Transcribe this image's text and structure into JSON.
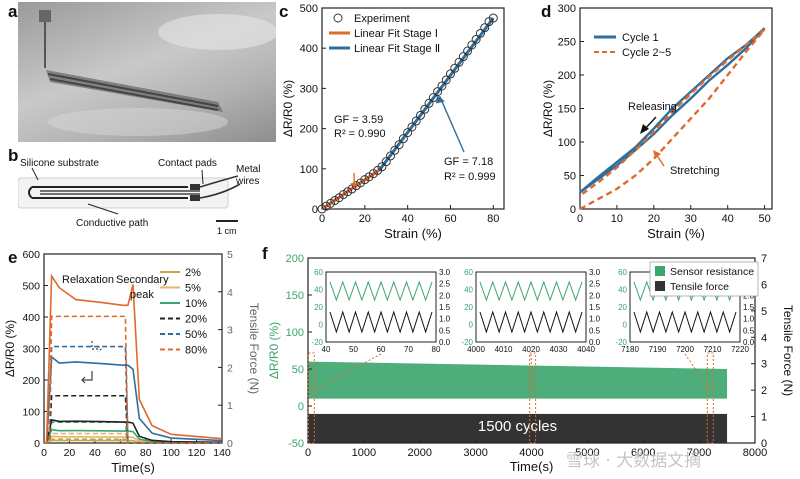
{
  "panels": {
    "a": {
      "label": "a"
    },
    "b": {
      "label": "b",
      "annotations": [
        "Silicone substrate",
        "Contact pads",
        "Metal wires",
        "Conductive path"
      ],
      "scale_bar": "1 cm"
    },
    "c": {
      "label": "c"
    },
    "d": {
      "label": "d"
    },
    "e": {
      "label": "e"
    },
    "f": {
      "label": "f",
      "cycles_label": "1500 cycles"
    }
  },
  "watermark": "雪球 · 大数据文摘",
  "colors": {
    "teal_blue": "#2e6e9e",
    "orange": "#e06a2c",
    "green": "#3aa56d",
    "black": "#222222"
  },
  "chart_data": [
    {
      "id": "c",
      "type": "scatter",
      "xlabel": "Strain (%)",
      "ylabel": "ΔR/R0 (%)",
      "xlim": [
        0,
        85
      ],
      "ylim": [
        0,
        500
      ],
      "xticks": [
        0,
        20,
        40,
        60,
        80
      ],
      "yticks": [
        0,
        100,
        200,
        300,
        400,
        500
      ],
      "series": [
        {
          "name": "Experiment",
          "style": "open-circle",
          "x": [
            0,
            2,
            4,
            6,
            8,
            10,
            12,
            14,
            16,
            18,
            20,
            22,
            24,
            26,
            28,
            30,
            32,
            34,
            36,
            38,
            40,
            42,
            44,
            46,
            48,
            50,
            52,
            54,
            56,
            58,
            60,
            62,
            64,
            66,
            68,
            70,
            72,
            74,
            76,
            78,
            80
          ],
          "y": [
            0,
            7,
            14,
            21,
            28,
            36,
            43,
            50,
            58,
            65,
            73,
            80,
            88,
            96,
            105,
            118,
            132,
            146,
            160,
            175,
            190,
            204,
            219,
            233,
            248,
            263,
            277,
            292,
            306,
            321,
            336,
            350,
            365,
            379,
            393,
            408,
            422,
            437,
            451,
            466,
            475
          ]
        },
        {
          "name": "Linear Fit Stage Ⅰ",
          "style": "line",
          "color": "#e06a2c",
          "x": [
            0,
            27
          ],
          "y": [
            0,
            98
          ]
        },
        {
          "name": "Linear Fit Stage Ⅱ",
          "style": "line",
          "color": "#2e6e9e",
          "x": [
            27,
            80
          ],
          "y": [
            98,
            475
          ]
        }
      ],
      "annotations": [
        {
          "text": [
            "GF = 3.59",
            "R² = 0.990"
          ]
        },
        {
          "text": [
            "GF = 7.18",
            "R² = 0.999"
          ]
        }
      ]
    },
    {
      "id": "d",
      "type": "line",
      "xlabel": "Strain (%)",
      "ylabel": "ΔR/R0 (%)",
      "xlim": [
        0,
        52
      ],
      "ylim": [
        0,
        300
      ],
      "xticks": [
        0,
        10,
        20,
        30,
        40,
        50
      ],
      "yticks": [
        0,
        50,
        100,
        150,
        200,
        250,
        300
      ],
      "series": [
        {
          "name": "Cycle 1",
          "color": "#2e6e9e",
          "style": "solid",
          "x": [
            0,
            5,
            10,
            15,
            20,
            25,
            30,
            35,
            40,
            45,
            50,
            45,
            40,
            35,
            30,
            25,
            20,
            15,
            10,
            5,
            0
          ],
          "y": [
            25,
            45,
            65,
            88,
            112,
            140,
            165,
            192,
            215,
            240,
            270,
            245,
            225,
            200,
            175,
            150,
            120,
            92,
            70,
            48,
            25
          ]
        },
        {
          "name": "Cycle 2~5",
          "color": "#e06a2c",
          "style": "dashed",
          "x": [
            0,
            5,
            10,
            15,
            20,
            25,
            30,
            35,
            40,
            45,
            50,
            45,
            40,
            35,
            30,
            25,
            20,
            15,
            10,
            5,
            0
          ],
          "y": [
            0,
            15,
            30,
            50,
            75,
            105,
            135,
            165,
            200,
            235,
            268,
            245,
            222,
            198,
            172,
            145,
            115,
            88,
            62,
            40,
            20
          ]
        }
      ],
      "annotations": [
        "Releasing",
        "Stretching"
      ]
    },
    {
      "id": "e",
      "type": "line",
      "xlabel": "Time(s)",
      "ylabel": "ΔR/R0 (%)",
      "ylabel_right": "Tensile Force (N)",
      "xlim": [
        0,
        140
      ],
      "ylim": [
        0,
        600
      ],
      "ylim_right": [
        0,
        5
      ],
      "xticks": [
        0,
        20,
        40,
        60,
        80,
        100,
        120,
        140
      ],
      "yticks": [
        0,
        100,
        200,
        300,
        400,
        500,
        600
      ],
      "yticks_right": [
        0,
        1,
        2,
        3,
        4,
        5
      ],
      "legend": [
        "2%",
        "5%",
        "10%",
        "20%",
        "50%",
        "80%"
      ],
      "series": [
        {
          "name": "2%",
          "color": "#c2a84a",
          "plateau": 8,
          "force": 0.1
        },
        {
          "name": "5%",
          "color": "#e8b46a",
          "plateau": 20,
          "force": 0.25
        },
        {
          "name": "10%",
          "color": "#3aa56d",
          "plateau": 40,
          "force": 0.55
        },
        {
          "name": "20%",
          "color": "#222222",
          "plateau": 70,
          "force": 1.25
        },
        {
          "name": "50%",
          "color": "#2e6e9e",
          "plateau": 260,
          "force": 2.55
        },
        {
          "name": "80%",
          "color": "#e06a2c",
          "plateau": 460,
          "peak": 530,
          "force": 3.35
        }
      ],
      "annotations": [
        "Relaxation",
        "Secondary",
        "peak"
      ]
    },
    {
      "id": "f",
      "type": "area",
      "xlabel": "Time(s)",
      "ylabel": "ΔR/R0 (%)",
      "ylabel_right": "Tensile Force (N)",
      "xlim": [
        0,
        8000
      ],
      "ylim": [
        -50,
        200
      ],
      "ylim_right": [
        0,
        7
      ],
      "xticks": [
        0,
        1000,
        2000,
        3000,
        4000,
        5000,
        6000,
        7000,
        8000
      ],
      "yticks": [
        -50,
        0,
        50,
        100,
        150,
        200
      ],
      "yticks_right": [
        0,
        1,
        2,
        3,
        4,
        5,
        6,
        7
      ],
      "legend": [
        "Sensor resistance",
        "Tensile force"
      ],
      "series": [
        {
          "name": "Sensor resistance",
          "color": "#3aa56d",
          "upper": 60,
          "lower": 10
        },
        {
          "name": "Tensile force",
          "color": "#333333",
          "upper": 1.1,
          "lower": 0
        }
      ],
      "insets": [
        {
          "xticks": [
            40,
            50,
            60,
            70,
            80
          ],
          "yticks": [
            -20,
            0,
            20,
            40,
            60
          ],
          "yticks_right": [
            0.0,
            0.5,
            1.0,
            1.5,
            2.0,
            2.5,
            3.0
          ]
        },
        {
          "xticks": [
            4000,
            4010,
            4020,
            4030,
            4040
          ],
          "yticks": [
            -20,
            0,
            20,
            40,
            60
          ],
          "yticks_right": [
            0.0,
            0.5,
            1.0,
            1.5,
            2.0,
            2.5,
            3.0
          ]
        },
        {
          "xticks": [
            7180,
            7190,
            7200,
            7210,
            7220
          ],
          "yticks": [
            -20,
            0,
            20,
            40,
            60
          ],
          "yticks_right": [
            0.0,
            0.5,
            1.0,
            1.5,
            2.0,
            2.5,
            3.0
          ]
        }
      ]
    }
  ]
}
